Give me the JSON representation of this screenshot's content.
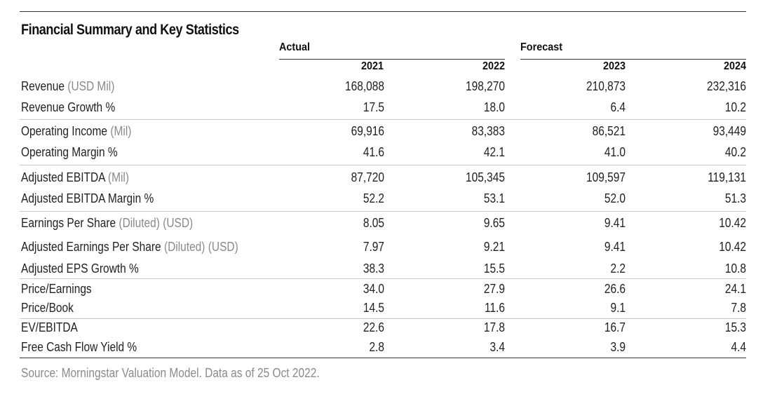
{
  "title": "Financial Summary and Key Statistics",
  "groups": {
    "actual": "Actual",
    "forecast": "Forecast"
  },
  "years": [
    "2021",
    "2022",
    "2023",
    "2024"
  ],
  "rows": [
    {
      "label": "Revenue",
      "unit": "(USD Mil)",
      "values": [
        "168,088",
        "198,270",
        "210,873",
        "232,316"
      ]
    },
    {
      "label": "Revenue Growth %",
      "unit": "",
      "values": [
        "17.5",
        "18.0",
        "6.4",
        "10.2"
      ]
    },
    {
      "label": "Operating Income",
      "unit": "(Mil)",
      "values": [
        "69,916",
        "83,383",
        "86,521",
        "93,449"
      ]
    },
    {
      "label": "Operating Margin %",
      "unit": "",
      "values": [
        "41.6",
        "42.1",
        "41.0",
        "40.2"
      ]
    },
    {
      "label": "Adjusted EBITDA",
      "unit": "(Mil)",
      "values": [
        "87,720",
        "105,345",
        "109,597",
        "119,131"
      ]
    },
    {
      "label": "Adjusted EBITDA Margin %",
      "unit": "",
      "values": [
        "52.2",
        "53.1",
        "52.0",
        "51.3"
      ]
    },
    {
      "label": "Earnings Per Share",
      "unit": "(Diluted) (USD)",
      "values": [
        "8.05",
        "9.65",
        "9.41",
        "10.42"
      ]
    },
    {
      "label": "Adjusted Earnings Per Share",
      "unit": "(Diluted) (USD)",
      "values": [
        "7.97",
        "9.21",
        "9.41",
        "10.42"
      ]
    },
    {
      "label": "Adjusted EPS Growth %",
      "unit": "",
      "values": [
        "38.3",
        "15.5",
        "2.2",
        "10.8"
      ]
    },
    {
      "label": "Price/Earnings",
      "unit": "",
      "values": [
        "34.0",
        "27.9",
        "26.6",
        "24.1"
      ]
    },
    {
      "label": "Price/Book",
      "unit": "",
      "values": [
        "14.5",
        "11.6",
        "9.1",
        "7.8"
      ]
    },
    {
      "label": "EV/EBITDA",
      "unit": "",
      "values": [
        "22.6",
        "17.8",
        "16.7",
        "15.3"
      ]
    },
    {
      "label": "Free Cash Flow Yield %",
      "unit": "",
      "values": [
        "2.8",
        "3.4",
        "3.9",
        "4.4"
      ]
    }
  ],
  "source": "Source: Morningstar Valuation Model. Data as of 25 Oct 2022."
}
